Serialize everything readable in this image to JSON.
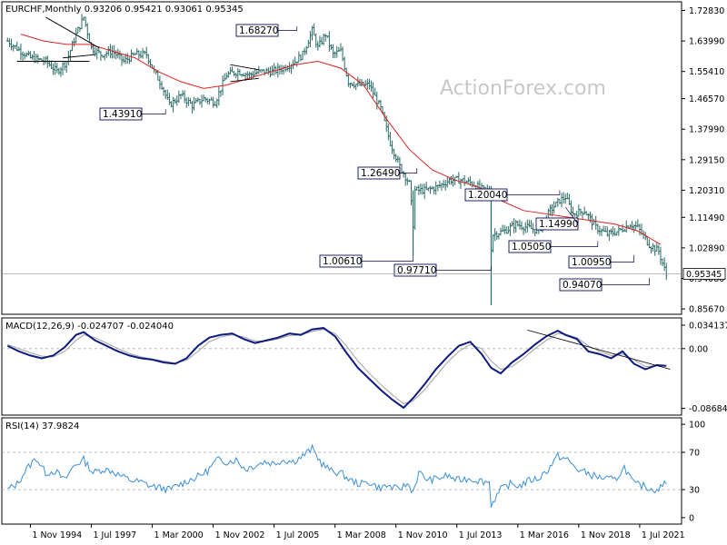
{
  "price_panel": {
    "header": "EURCHF,Monthly  0.93206 0.95421 0.93061 0.95345",
    "watermark": "ActionForex.com",
    "last_price_label": "0.95345",
    "ma_color": "#e02020",
    "bar_color": "#2a6b66"
  },
  "macd_panel": {
    "header": "MACD(12,26,9) -0.024707 -0.024040",
    "macd_color": "#0d1a80",
    "signal_color": "#a0a0a0"
  },
  "rsi_panel": {
    "header": "RSI(14) 37.9824",
    "rsi_color": "#3a8fd8"
  },
  "time_axis": [
    "1 Nov 1994",
    "1 Jul 1997",
    "1 Mar 2000",
    "1 Nov 2002",
    "1 Jul 2005",
    "1 Mar 2008",
    "1 Nov 2010",
    "1 Jul 2013",
    "1 Mar 2016",
    "1 Nov 2018",
    "1 Jul 2021"
  ],
  "chart_data": [
    {
      "type": "ohlc",
      "panel": "price",
      "x_start": "1993-11",
      "x_end": "2022-09",
      "yticks": [
        0.85,
        0.94,
        1.03,
        1.12,
        1.2,
        1.29,
        1.38,
        1.47,
        1.55,
        1.64,
        1.73
      ],
      "ytick_labels": [
        "0.85670",
        "0.94080",
        "1.02890",
        "1.11490",
        "1.20310",
        "1.29150",
        "1.37990",
        "1.46570",
        "1.55410",
        "1.63990",
        "1.72830"
      ],
      "ylim": [
        0.845,
        1.75
      ],
      "series": [
        {
          "kind": "price",
          "x": [
            "1993-11",
            "1994-06",
            "1994-11",
            "1995-07",
            "1996-01",
            "1996-06",
            "1996-11",
            "1997-03",
            "1997-07",
            "1997-12",
            "1998-06",
            "1998-12",
            "1999-06",
            "1999-12",
            "2000-04",
            "2000-08",
            "2000-12",
            "2001-06",
            "2001-12",
            "2002-06",
            "2002-12",
            "2003-06",
            "2003-12",
            "2004-06",
            "2004-12",
            "2005-06",
            "2005-12",
            "2006-06",
            "2006-10",
            "2007-03",
            "2007-06",
            "2007-10",
            "2008-02",
            "2008-06",
            "2008-10",
            "2009-03",
            "2009-09",
            "2010-03",
            "2010-08",
            "2011-01",
            "2011-06",
            "2011-08",
            "2011-09",
            "2012-03",
            "2012-09",
            "2013-03",
            "2013-09",
            "2014-03",
            "2014-09",
            "2014-12",
            "2015-01",
            "2015-02",
            "2015-08",
            "2016-02",
            "2016-08",
            "2017-02",
            "2017-08",
            "2018-01",
            "2018-04",
            "2018-08",
            "2019-02",
            "2019-08",
            "2020-02",
            "2020-08",
            "2021-02",
            "2021-06",
            "2021-12",
            "2022-05",
            "2022-09"
          ],
          "y": [
            1.64,
            1.61,
            1.59,
            1.58,
            1.55,
            1.58,
            1.66,
            1.71,
            1.62,
            1.6,
            1.61,
            1.58,
            1.6,
            1.6,
            1.55,
            1.51,
            1.45,
            1.48,
            1.45,
            1.47,
            1.46,
            1.54,
            1.55,
            1.54,
            1.55,
            1.55,
            1.56,
            1.58,
            1.6,
            1.67,
            1.62,
            1.66,
            1.6,
            1.61,
            1.52,
            1.51,
            1.51,
            1.44,
            1.34,
            1.27,
            1.22,
            1.1,
            1.2,
            1.2,
            1.21,
            1.23,
            1.23,
            1.22,
            1.2,
            1.2,
            1.03,
            1.07,
            1.08,
            1.1,
            1.09,
            1.08,
            1.14,
            1.17,
            1.18,
            1.13,
            1.14,
            1.09,
            1.07,
            1.08,
            1.1,
            1.09,
            1.04,
            1.02,
            0.95
          ]
        },
        {
          "kind": "ma",
          "x": [
            "1994-06",
            "1995-06",
            "1996-06",
            "1997-06",
            "1998-06",
            "1999-06",
            "2000-06",
            "2001-06",
            "2002-06",
            "2003-06",
            "2004-06",
            "2005-06",
            "2006-06",
            "2007-06",
            "2008-06",
            "2009-06",
            "2010-06",
            "2011-06",
            "2012-06",
            "2013-06",
            "2014-06",
            "2015-06",
            "2016-06",
            "2017-06",
            "2018-06",
            "2019-06",
            "2020-06",
            "2021-06",
            "2022-06"
          ],
          "y": [
            1.66,
            1.64,
            1.63,
            1.63,
            1.61,
            1.59,
            1.55,
            1.52,
            1.5,
            1.51,
            1.53,
            1.55,
            1.57,
            1.58,
            1.56,
            1.51,
            1.41,
            1.32,
            1.26,
            1.23,
            1.21,
            1.17,
            1.14,
            1.13,
            1.12,
            1.11,
            1.1,
            1.08,
            1.04
          ]
        }
      ],
      "annotations": [
        "1.68270",
        "1.43910",
        "1.26490",
        "1.00610",
        "0.97710",
        "1.20040",
        "1.14990",
        "1.05050",
        "1.00950",
        "0.94070"
      ]
    },
    {
      "type": "line",
      "panel": "macd",
      "yticks": [
        0.034137,
        0.0,
        -0.086849
      ],
      "ytick_labels": [
        "0.034137",
        "0.00",
        "-0.086849"
      ],
      "ylim": [
        -0.094,
        0.042
      ],
      "series": [
        {
          "kind": "macd",
          "x": [
            "1993-11",
            "1994-05",
            "1994-11",
            "1995-05",
            "1995-11",
            "1996-05",
            "1996-11",
            "1997-03",
            "1997-09",
            "1998-03",
            "1998-09",
            "1999-03",
            "1999-09",
            "2000-03",
            "2000-09",
            "2001-03",
            "2001-09",
            "2002-03",
            "2002-09",
            "2003-03",
            "2003-09",
            "2004-03",
            "2004-09",
            "2005-03",
            "2005-09",
            "2006-03",
            "2006-09",
            "2007-03",
            "2007-09",
            "2008-03",
            "2008-09",
            "2009-03",
            "2009-09",
            "2010-03",
            "2010-09",
            "2011-03",
            "2011-08",
            "2012-02",
            "2012-08",
            "2013-02",
            "2013-08",
            "2014-02",
            "2014-08",
            "2015-01",
            "2015-06",
            "2015-12",
            "2016-06",
            "2016-12",
            "2017-06",
            "2017-12",
            "2018-04",
            "2018-10",
            "2019-04",
            "2019-10",
            "2020-04",
            "2020-10",
            "2021-04",
            "2021-10",
            "2022-04",
            "2022-09"
          ],
          "y": [
            0.004,
            -0.004,
            -0.01,
            -0.014,
            -0.01,
            0.002,
            0.02,
            0.024,
            0.012,
            0.004,
            -0.004,
            -0.01,
            -0.014,
            -0.016,
            -0.02,
            -0.022,
            -0.014,
            0.004,
            0.016,
            0.02,
            0.022,
            0.014,
            0.008,
            0.012,
            0.016,
            0.022,
            0.02,
            0.028,
            0.03,
            0.018,
            -0.006,
            -0.028,
            -0.044,
            -0.06,
            -0.074,
            -0.086,
            -0.072,
            -0.052,
            -0.03,
            -0.012,
            0.004,
            0.01,
            -0.008,
            -0.028,
            -0.036,
            -0.02,
            -0.008,
            0.006,
            0.018,
            0.026,
            0.02,
            0.014,
            -0.004,
            -0.008,
            -0.014,
            -0.004,
            -0.022,
            -0.03,
            -0.024,
            -0.025
          ]
        },
        {
          "kind": "signal",
          "x": [
            "1993-11",
            "1994-05",
            "1994-11",
            "1995-05",
            "1995-11",
            "1996-05",
            "1996-11",
            "1997-03",
            "1997-09",
            "1998-03",
            "1998-09",
            "1999-03",
            "1999-09",
            "2000-03",
            "2000-09",
            "2001-03",
            "2001-09",
            "2002-03",
            "2002-09",
            "2003-03",
            "2003-09",
            "2004-03",
            "2004-09",
            "2005-03",
            "2005-09",
            "2006-03",
            "2006-09",
            "2007-03",
            "2007-09",
            "2008-03",
            "2008-09",
            "2009-03",
            "2009-09",
            "2010-03",
            "2010-09",
            "2011-03",
            "2011-08",
            "2012-02",
            "2012-08",
            "2013-02",
            "2013-08",
            "2014-02",
            "2014-08",
            "2015-01",
            "2015-06",
            "2015-12",
            "2016-06",
            "2016-12",
            "2017-06",
            "2017-12",
            "2018-04",
            "2018-10",
            "2019-04",
            "2019-10",
            "2020-04",
            "2020-10",
            "2021-04",
            "2021-10",
            "2022-04",
            "2022-09"
          ],
          "y": [
            0.006,
            0.0,
            -0.006,
            -0.011,
            -0.012,
            -0.004,
            0.012,
            0.02,
            0.016,
            0.008,
            0.0,
            -0.007,
            -0.012,
            -0.015,
            -0.018,
            -0.021,
            -0.017,
            -0.004,
            0.01,
            0.017,
            0.02,
            0.017,
            0.011,
            0.011,
            0.014,
            0.019,
            0.02,
            0.025,
            0.028,
            0.022,
            0.004,
            -0.018,
            -0.036,
            -0.052,
            -0.067,
            -0.08,
            -0.076,
            -0.06,
            -0.04,
            -0.02,
            -0.004,
            0.006,
            0.0,
            -0.018,
            -0.03,
            -0.026,
            -0.014,
            0.0,
            0.012,
            0.022,
            0.021,
            0.016,
            0.004,
            -0.004,
            -0.01,
            -0.008,
            -0.016,
            -0.026,
            -0.025,
            -0.024
          ]
        }
      ],
      "trendline": {
        "x": [
          "2016-08",
          "2022-11"
        ],
        "y": [
          0.027,
          -0.03
        ]
      }
    },
    {
      "type": "line",
      "panel": "rsi",
      "yticks": [
        100,
        70,
        30,
        0
      ],
      "ytick_labels": [
        "100",
        "70",
        "30",
        "0"
      ],
      "ylim": [
        -5,
        105
      ],
      "series": [
        {
          "kind": "rsi",
          "x": [
            "1993-11",
            "1994-04",
            "1994-09",
            "1995-02",
            "1995-07",
            "1995-12",
            "1996-05",
            "1996-10",
            "1997-03",
            "1997-08",
            "1998-01",
            "1998-06",
            "1998-11",
            "1999-04",
            "1999-09",
            "2000-02",
            "2000-07",
            "2000-12",
            "2001-05",
            "2001-10",
            "2002-03",
            "2002-08",
            "2003-01",
            "2003-06",
            "2003-11",
            "2004-04",
            "2004-09",
            "2005-02",
            "2005-07",
            "2005-12",
            "2006-05",
            "2006-10",
            "2007-03",
            "2007-08",
            "2008-01",
            "2008-06",
            "2008-11",
            "2009-04",
            "2009-09",
            "2010-02",
            "2010-07",
            "2010-12",
            "2011-05",
            "2011-08",
            "2011-11",
            "2012-04",
            "2012-09",
            "2013-02",
            "2013-07",
            "2014-01",
            "2014-06",
            "2014-12",
            "2015-01",
            "2015-06",
            "2015-11",
            "2016-04",
            "2016-09",
            "2017-02",
            "2017-07",
            "2017-12",
            "2018-05",
            "2018-10",
            "2019-03",
            "2019-08",
            "2020-01",
            "2020-06",
            "2020-11",
            "2021-04",
            "2021-09",
            "2022-02",
            "2022-06",
            "2022-09"
          ],
          "y": [
            30,
            36,
            52,
            64,
            48,
            50,
            40,
            56,
            62,
            48,
            52,
            50,
            44,
            40,
            38,
            34,
            32,
            30,
            35,
            40,
            44,
            50,
            62,
            60,
            62,
            52,
            56,
            60,
            58,
            62,
            60,
            66,
            74,
            58,
            50,
            48,
            40,
            36,
            38,
            32,
            34,
            30,
            36,
            28,
            48,
            40,
            42,
            45,
            40,
            42,
            40,
            38,
            14,
            30,
            36,
            34,
            40,
            42,
            52,
            66,
            62,
            52,
            48,
            44,
            42,
            40,
            54,
            36,
            34,
            30,
            32,
            38
          ]
        }
      ]
    }
  ]
}
